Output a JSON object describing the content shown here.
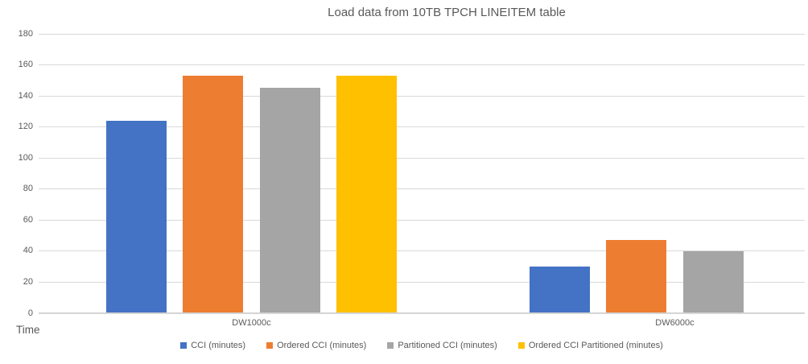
{
  "chart": {
    "title": "Load data from 10TB TPCH LINEITEM table",
    "x_axis_title": "Time"
  },
  "colors": {
    "text": "#595959",
    "gridline": "#d9d9d9",
    "background": "#ffffff"
  },
  "chart_data": {
    "type": "bar",
    "title": "Load data from 10TB TPCH LINEITEM table",
    "xlabel": "Time",
    "ylabel": "",
    "ylim": [
      0,
      180
    ],
    "y_ticks": [
      0,
      20,
      40,
      60,
      80,
      100,
      120,
      140,
      160,
      180
    ],
    "grid": true,
    "legend_position": "bottom",
    "categories": [
      "DW1000c",
      "DW6000c"
    ],
    "series": [
      {
        "name": "CCI (minutes)",
        "color": "#4472C4",
        "values": [
          124,
          30
        ]
      },
      {
        "name": "Ordered CCI (minutes)",
        "color": "#ED7D31",
        "values": [
          153,
          47
        ]
      },
      {
        "name": "Partitioned CCI (minutes)",
        "color": "#A5A5A5",
        "values": [
          145,
          40
        ]
      },
      {
        "name": "Ordered CCI Partitioned (minutes)",
        "color": "#FFC000",
        "values": [
          153,
          null
        ]
      }
    ]
  }
}
